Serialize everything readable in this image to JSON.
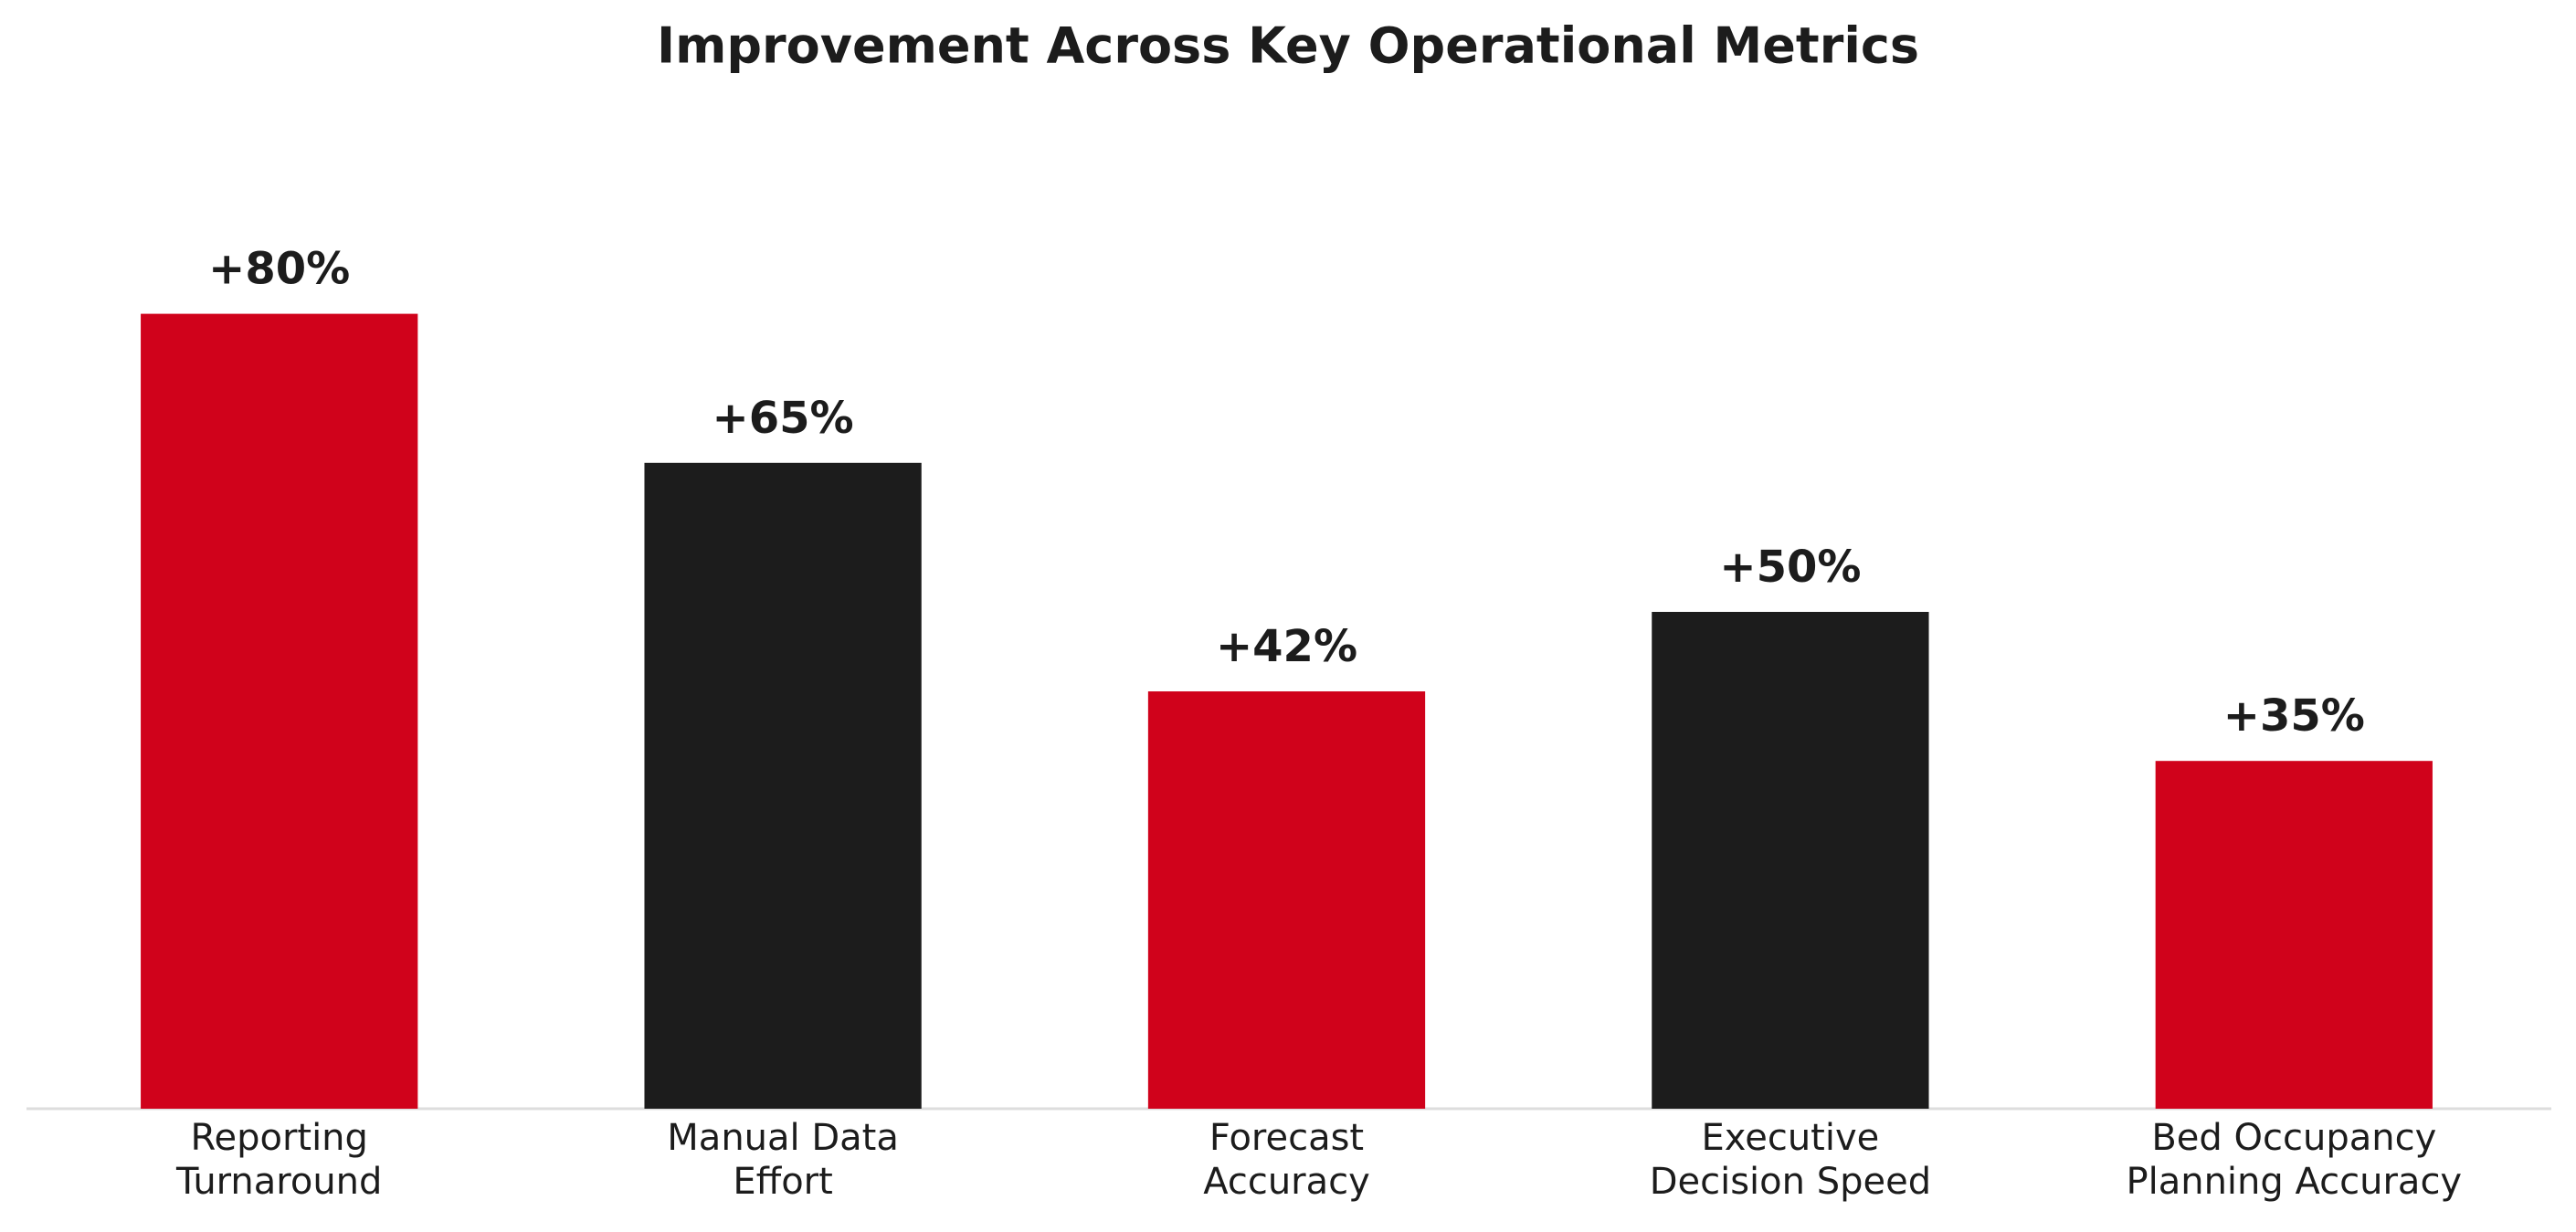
{
  "chart_data": {
    "type": "bar",
    "title": "Improvement Across Key Operational Metrics",
    "categories": [
      "Reporting\nTurnaround",
      "Manual Data\nEffort",
      "Forecast\nAccuracy",
      "Executive\nDecision Speed",
      "Bed Occupancy\nPlanning Accuracy"
    ],
    "values": [
      80,
      65,
      42,
      50,
      35
    ],
    "value_labels": [
      "+80%",
      "+65%",
      "+42%",
      "+50%",
      "+35%"
    ],
    "colors": [
      "#d0021b",
      "#1c1c1c",
      "#d0021b",
      "#1c1c1c",
      "#d0021b"
    ],
    "ylim": [
      0,
      100
    ],
    "grid": false
  }
}
